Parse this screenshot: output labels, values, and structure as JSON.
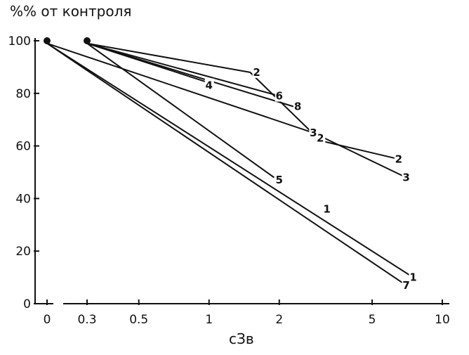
{
  "chart_data": {
    "type": "line",
    "ylabel": "%% от контроля",
    "xlabel": "сЗв",
    "x_scale": "log",
    "ylim": [
      0,
      100
    ],
    "y_ticks": [
      "0",
      "20",
      "40",
      "60",
      "80",
      "100"
    ],
    "x_ticks": [
      {
        "label": "0",
        "value": 0
      },
      {
        "label": "0.3",
        "value": 0.3
      },
      {
        "label": "0.5",
        "value": 0.5
      },
      {
        "label": "1",
        "value": 1
      },
      {
        "label": "2",
        "value": 2
      },
      {
        "label": "5",
        "value": 5
      },
      {
        "label": "10",
        "value": 10
      }
    ],
    "markers": [
      {
        "x": 0,
        "y": 100
      },
      {
        "x": 0.3,
        "y": 100
      }
    ],
    "series": [
      {
        "name": "1",
        "points": [
          {
            "x": 0,
            "y": 99
          },
          {
            "x": 7.5,
            "y": 10
          }
        ],
        "label_points": [
          {
            "x": 3.2,
            "y": 36
          },
          {
            "x": 7.5,
            "y": 10
          }
        ]
      },
      {
        "name": "2",
        "points": [
          {
            "x": 0.3,
            "y": 99
          },
          {
            "x": 1.5,
            "y": 88
          },
          {
            "x": 3,
            "y": 62
          },
          {
            "x": 6.5,
            "y": 55
          }
        ],
        "label_points": [
          {
            "x": 1.6,
            "y": 88
          },
          {
            "x": 3,
            "y": 63
          },
          {
            "x": 6.5,
            "y": 55
          }
        ]
      },
      {
        "name": "3",
        "points": [
          {
            "x": 0,
            "y": 99
          },
          {
            "x": 2.8,
            "y": 65
          },
          {
            "x": 7,
            "y": 48
          }
        ],
        "label_points": [
          {
            "x": 2.8,
            "y": 65
          },
          {
            "x": 7,
            "y": 48
          }
        ]
      },
      {
        "name": "4",
        "points": [
          {
            "x": 0.3,
            "y": 99
          },
          {
            "x": 1,
            "y": 84
          }
        ],
        "label_points": [
          {
            "x": 1,
            "y": 83
          }
        ]
      },
      {
        "name": "5",
        "points": [
          {
            "x": 0.3,
            "y": 99
          },
          {
            "x": 1.9,
            "y": 48
          }
        ],
        "label_points": [
          {
            "x": 2,
            "y": 47
          }
        ]
      },
      {
        "name": "6",
        "points": [
          {
            "x": 0.3,
            "y": 99
          },
          {
            "x": 2,
            "y": 79
          }
        ],
        "label_points": [
          {
            "x": 2,
            "y": 79
          }
        ]
      },
      {
        "name": "7",
        "points": [
          {
            "x": 0,
            "y": 99
          },
          {
            "x": 7,
            "y": 7
          }
        ],
        "label_points": [
          {
            "x": 7,
            "y": 7
          }
        ]
      },
      {
        "name": "8",
        "points": [
          {
            "x": 0.3,
            "y": 99
          },
          {
            "x": 2.3,
            "y": 75
          }
        ],
        "label_points": [
          {
            "x": 2.4,
            "y": 75
          }
        ]
      }
    ]
  }
}
